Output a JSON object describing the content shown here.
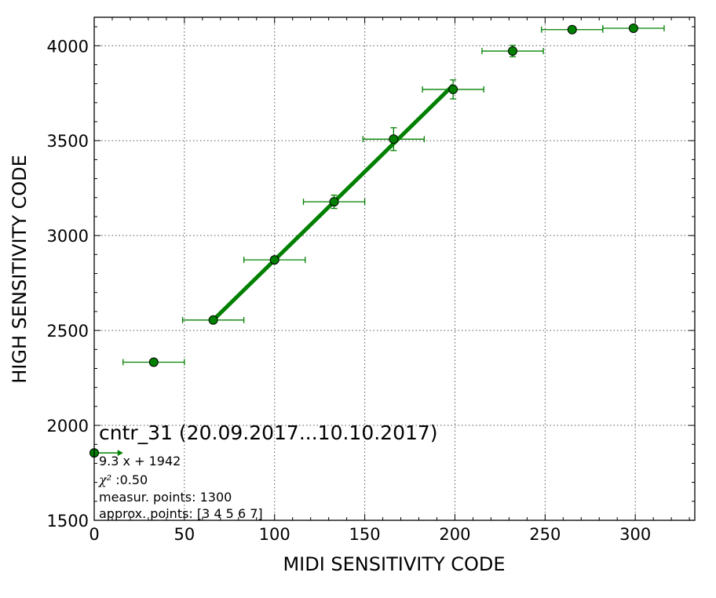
{
  "chart_data": {
    "type": "scatter",
    "xlabel": "MIDI SENSITIVITY CODE",
    "ylabel": "HIGH SENSITIVITY CODE",
    "xlim": [
      0,
      333
    ],
    "ylim": [
      1500,
      4150
    ],
    "xticks": [
      0,
      50,
      100,
      150,
      200,
      250,
      300
    ],
    "yticks": [
      1500,
      2000,
      2500,
      3000,
      3500,
      4000
    ],
    "grid": true,
    "colors": {
      "series": "#008000",
      "marker_edge": "#000000",
      "frame": "#000000",
      "grid": "#555555"
    },
    "series": [
      {
        "points": [
          {
            "x": 0,
            "y": 1855,
            "xerr": 0,
            "yerr": 0
          },
          {
            "x": 33,
            "y": 2333,
            "xerr": 17,
            "yerr": 8
          },
          {
            "x": 66,
            "y": 2555,
            "xerr": 17,
            "yerr": 10
          },
          {
            "x": 100,
            "y": 2872,
            "xerr": 17,
            "yerr": 12
          },
          {
            "x": 133,
            "y": 3178,
            "xerr": 17,
            "yerr": 35
          },
          {
            "x": 166,
            "y": 3508,
            "xerr": 17,
            "yerr": 60
          },
          {
            "x": 199,
            "y": 3770,
            "xerr": 17,
            "yerr": 50
          },
          {
            "x": 232,
            "y": 3972,
            "xerr": 17,
            "yerr": 30
          },
          {
            "x": 265,
            "y": 4085,
            "xerr": 17,
            "yerr": 8
          },
          {
            "x": 299,
            "y": 4092,
            "xerr": 17,
            "yerr": 8
          }
        ]
      }
    ],
    "fit_line": {
      "x": [
        66,
        199
      ],
      "y": [
        2555,
        3792
      ]
    },
    "arrow_marker": {
      "x_start": 0,
      "x_end": 16,
      "y": 1855
    },
    "annotation": {
      "title": "cntr_31 (20.09.2017...10.10.2017)",
      "equation": "9.3 x + 1942",
      "chi_symbol": "χ²",
      "chi_value": " :0.50",
      "measur_points": "measur. points: 1300",
      "approx_points": "approx. points: [3 4 5 6 7]"
    }
  }
}
